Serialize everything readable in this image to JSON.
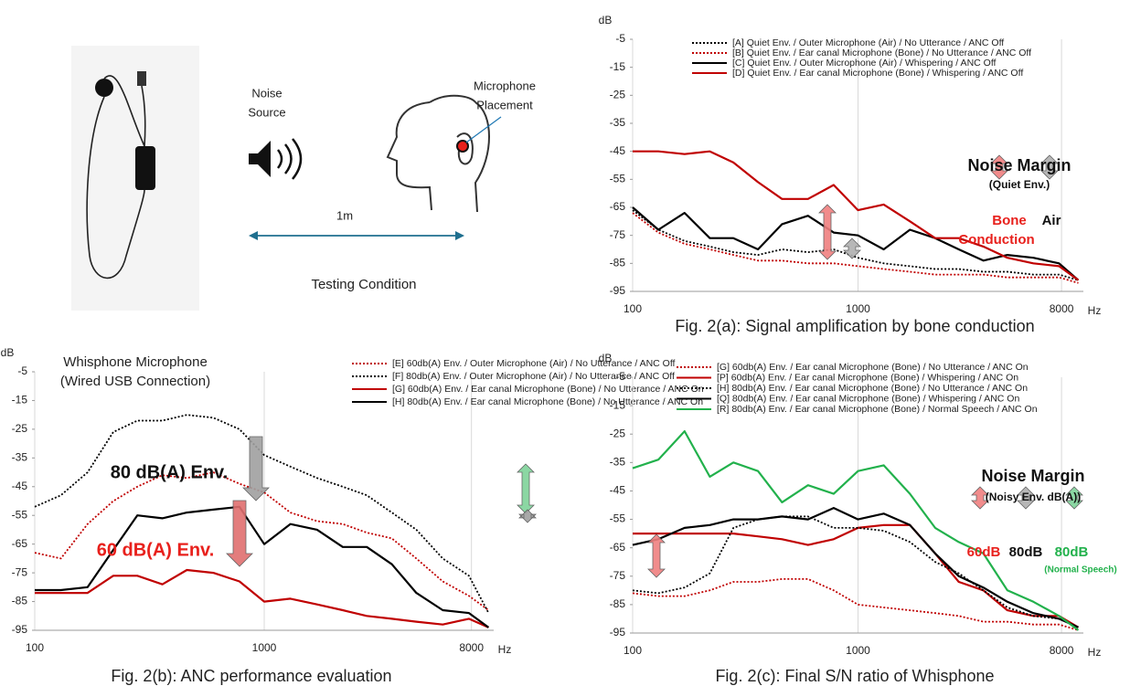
{
  "chart_data": [
    {
      "type": "line",
      "caption": "Fig. 2(a): Signal amplification by bone conduction",
      "y_label": "dB",
      "x_label": "Hz",
      "log_x": true,
      "legend": "top",
      "x": [
        100,
        130,
        170,
        220,
        280,
        360,
        460,
        600,
        780,
        1000,
        1300,
        1700,
        2200,
        2800,
        3600,
        4600,
        6000,
        7800,
        9500
      ],
      "xlim": [
        100,
        10000
      ],
      "xticks": [
        100,
        1000,
        8000
      ],
      "ylim": [
        -95,
        -5
      ],
      "yticks": [
        -5,
        -15,
        -25,
        -35,
        -45,
        -55,
        -65,
        -75,
        -85,
        -95
      ],
      "series": [
        {
          "name": "[A] Quiet Env. / Outer Microphone (Air) / No Utterance / ANC Off",
          "color": "#000000",
          "style": "dotted",
          "values": [
            -66,
            -73,
            -77,
            -79,
            -81,
            -82,
            -80,
            -81,
            -80,
            -83,
            -85,
            -86,
            -87,
            -87,
            -88,
            -88,
            -89,
            -89,
            -91
          ]
        },
        {
          "name": "[B] Quiet Env. / Ear canal Microphone (Bone) / No Utterance / ANC Off",
          "color": "#c00000",
          "style": "dotted",
          "values": [
            -67,
            -74,
            -78,
            -80,
            -82,
            -84,
            -84,
            -85,
            -85,
            -86,
            -87,
            -88,
            -89,
            -89,
            -89,
            -90,
            -90,
            -90,
            -92
          ]
        },
        {
          "name": "[C] Quiet Env. / Outer Microphone (Air) / Whispering / ANC Off",
          "color": "#000000",
          "style": "solid",
          "values": [
            -65,
            -73,
            -67,
            -76,
            -76,
            -80,
            -71,
            -68,
            -74,
            -75,
            -80,
            -73,
            -76,
            -80,
            -84,
            -82,
            -83,
            -85,
            -91
          ]
        },
        {
          "name": "[D] Quiet Env. / Ear canal Microphone (Bone) / Whispering / ANC Off",
          "color": "#c00000",
          "style": "solid",
          "values": [
            -45,
            -45,
            -46,
            -45,
            -49,
            -56,
            -62,
            -62,
            -57,
            -66,
            -64,
            -70,
            -76,
            -76,
            -79,
            -83,
            -85,
            -86,
            -91
          ]
        }
      ],
      "annotations": [
        "Noise Margin",
        "(Quiet Env.)",
        "Bone",
        "Conduction",
        "Air"
      ]
    },
    {
      "type": "line",
      "caption": "Fig. 2(b): ANC performance evaluation",
      "y_label": "dB",
      "x_label": "Hz",
      "log_x": true,
      "legend": "top",
      "x": [
        100,
        130,
        170,
        220,
        280,
        360,
        460,
        600,
        780,
        1000,
        1300,
        1700,
        2200,
        2800,
        3600,
        4600,
        6000,
        7800,
        9500
      ],
      "xlim": [
        100,
        10000
      ],
      "xticks": [
        100,
        1000,
        8000
      ],
      "ylim": [
        -95,
        -5
      ],
      "yticks": [
        -5,
        -15,
        -25,
        -35,
        -45,
        -55,
        -65,
        -75,
        -85,
        -95
      ],
      "series": [
        {
          "name": "[E] 60db(A) Env. / Outer Microphone (Air) / No Utterance / ANC Off",
          "color": "#c00000",
          "style": "dotted",
          "values": [
            -68,
            -70,
            -58,
            -50,
            -45,
            -41,
            -42,
            -40,
            -44,
            -47,
            -54,
            -57,
            -58,
            -61,
            -63,
            -70,
            -78,
            -83,
            -88
          ]
        },
        {
          "name": "[F] 80db(A) Env. / Outer Microphone (Air) / No Utterance / ANC Off",
          "color": "#000000",
          "style": "dotted",
          "values": [
            -52,
            -48,
            -40,
            -26,
            -22,
            -22,
            -20,
            -21,
            -25,
            -34,
            -38,
            -42,
            -45,
            -48,
            -54,
            -60,
            -70,
            -76,
            -89
          ]
        },
        {
          "name": "[G] 60db(A) Env. / Ear canal Microphone (Bone) / No Utterance / ANC On",
          "color": "#c00000",
          "style": "solid",
          "values": [
            -82,
            -82,
            -82,
            -76,
            -76,
            -79,
            -74,
            -75,
            -78,
            -85,
            -84,
            -86,
            -88,
            -90,
            -91,
            -92,
            -93,
            -91,
            -94
          ]
        },
        {
          "name": "[H] 80db(A) Env. / Ear canal Microphone (Bone) / No Utterance / ANC On",
          "color": "#000000",
          "style": "solid",
          "values": [
            -81,
            -81,
            -80,
            -67,
            -55,
            -56,
            -54,
            -53,
            -52,
            -65,
            -58,
            -60,
            -66,
            -66,
            -72,
            -82,
            -88,
            -89,
            -94
          ]
        }
      ],
      "annotations": [
        "80 dB(A) Env.",
        "60 dB(A) Env."
      ]
    },
    {
      "type": "line",
      "caption": "Fig. 2(c): Final S/N ratio of Whisphone",
      "y_label": "dB",
      "x_label": "Hz",
      "log_x": true,
      "legend": "top",
      "x": [
        100,
        130,
        170,
        220,
        280,
        360,
        460,
        600,
        780,
        1000,
        1300,
        1700,
        2200,
        2800,
        3600,
        4600,
        6000,
        7800,
        9500
      ],
      "xlim": [
        100,
        10000
      ],
      "xticks": [
        100,
        1000,
        8000
      ],
      "ylim": [
        -95,
        -5
      ],
      "yticks": [
        -5,
        -15,
        -25,
        -35,
        -45,
        -55,
        -65,
        -75,
        -85,
        -95
      ],
      "series": [
        {
          "name": "[G] 60db(A) Env. / Ear canal Microphone (Bone) / No Utterance / ANC On",
          "color": "#c00000",
          "style": "dotted",
          "values": [
            -81,
            -82,
            -82,
            -80,
            -77,
            -77,
            -76,
            -76,
            -80,
            -85,
            -86,
            -87,
            -88,
            -89,
            -91,
            -91,
            -92,
            -92,
            -94
          ]
        },
        {
          "name": "[P] 60db(A) Env. / Ear canal Microphone (Bone) / Whispering / ANC On",
          "color": "#c00000",
          "style": "solid",
          "values": [
            -60,
            -60,
            -60,
            -60,
            -60,
            -61,
            -62,
            -64,
            -62,
            -58,
            -57,
            -57,
            -67,
            -77,
            -80,
            -87,
            -89,
            -89,
            -93
          ]
        },
        {
          "name": "[H] 80db(A) Env. / Ear canal Microphone (Bone) / No Utterance / ANC On",
          "color": "#000000",
          "style": "dotted",
          "values": [
            -80,
            -81,
            -79,
            -74,
            -58,
            -55,
            -54,
            -54,
            -58,
            -58,
            -59,
            -63,
            -70,
            -74,
            -80,
            -86,
            -89,
            -90,
            -93
          ]
        },
        {
          "name": "[Q] 80db(A) Env. / Ear canal Microphone (Bone) / Whispering / ANC On",
          "color": "#000000",
          "style": "solid",
          "values": [
            -64,
            -62,
            -58,
            -57,
            -55,
            -55,
            -54,
            -55,
            -51,
            -55,
            -53,
            -57,
            -67,
            -75,
            -79,
            -84,
            -88,
            -90,
            -93
          ]
        },
        {
          "name": "[R] 80db(A) Env. / Ear canal Microphone (Bone) / Normal Speech / ANC On",
          "color": "#22b14c",
          "style": "solid",
          "values": [
            -37,
            -34,
            -24,
            -40,
            -35,
            -38,
            -49,
            -43,
            -46,
            -38,
            -36,
            -46,
            -58,
            -63,
            -67,
            -80,
            -84,
            -89,
            -94
          ]
        }
      ],
      "annotations": [
        "Noise Margin",
        "(Noisy Env. dB(A))",
        "60dB",
        "80dB",
        "80dB",
        "(Normal Speech)"
      ]
    }
  ],
  "diagram": {
    "device_caption": [
      "Whisphone Microphone",
      "(Wired USB Connection)"
    ],
    "noise_source": [
      "Noise",
      "Source"
    ],
    "mic_placement": [
      "Microphone",
      "Placement"
    ],
    "distance": "1m",
    "condition_caption": "Testing Condition"
  }
}
